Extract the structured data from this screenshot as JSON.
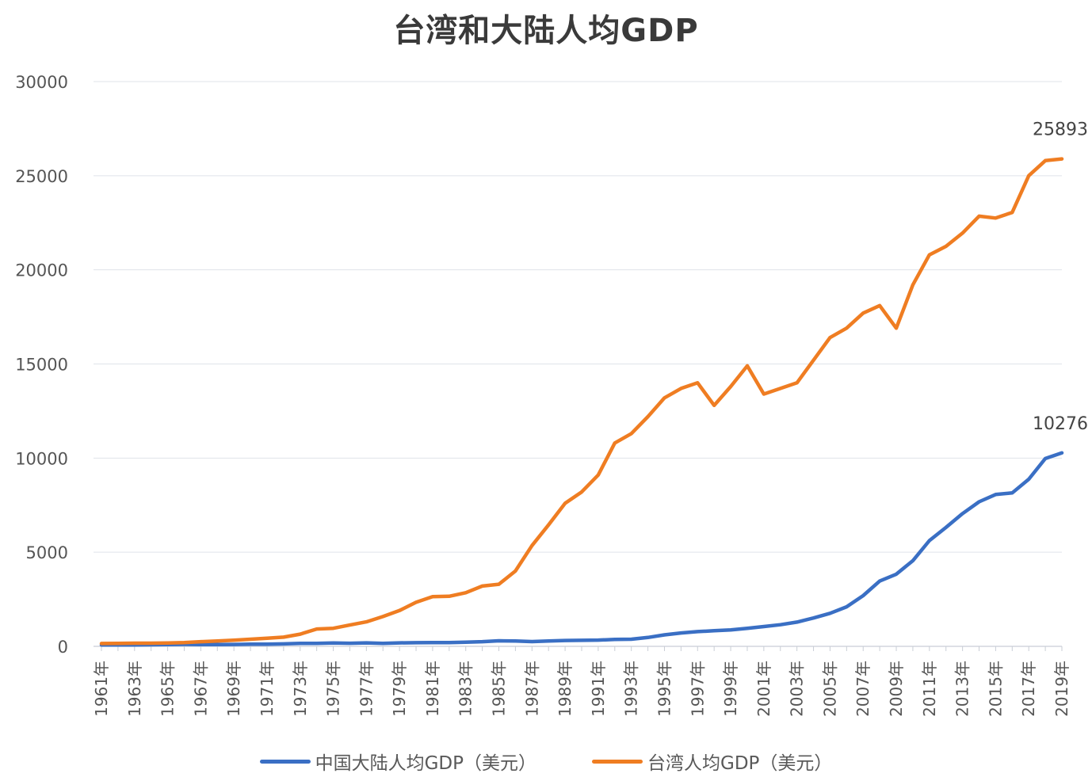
{
  "colors": {
    "series_mainland": "#3a6fc4",
    "series_taiwan": "#ef7d22",
    "grid": "#dfe3ea"
  },
  "chart_data": {
    "type": "line",
    "title": "台湾和大陆人均GDP",
    "xlabel": "",
    "ylabel": "",
    "ylim": [
      0,
      30000
    ],
    "yticks": [
      0,
      5000,
      10000,
      15000,
      20000,
      25000,
      30000
    ],
    "grid": true,
    "legend_position": "bottom",
    "x_tick_labels": [
      "1961年",
      "1963年",
      "1965年",
      "1967年",
      "1969年",
      "1971年",
      "1973年",
      "1975年",
      "1977年",
      "1979年",
      "1981年",
      "1983年",
      "1985年",
      "1987年",
      "1989年",
      "1991年",
      "1993年",
      "1995年",
      "1997年",
      "1999年",
      "2001年",
      "2003年",
      "2005年",
      "2007年",
      "2009年",
      "2011年",
      "2013年",
      "2015年",
      "2017年",
      "2019年"
    ],
    "x": [
      1961,
      1962,
      1963,
      1964,
      1965,
      1966,
      1967,
      1968,
      1969,
      1970,
      1971,
      1972,
      1973,
      1974,
      1975,
      1976,
      1977,
      1978,
      1979,
      1980,
      1981,
      1982,
      1983,
      1984,
      1985,
      1986,
      1987,
      1988,
      1989,
      1990,
      1991,
      1992,
      1993,
      1994,
      1995,
      1996,
      1997,
      1998,
      1999,
      2000,
      2001,
      2002,
      2003,
      2004,
      2005,
      2006,
      2007,
      2008,
      2009,
      2010,
      2011,
      2012,
      2013,
      2014,
      2015,
      2016,
      2017,
      2018,
      2019
    ],
    "series": [
      {
        "name": "中国大陆人均GDP（美元）",
        "values": [
          76,
          70,
          72,
          85,
          98,
          104,
          97,
          91,
          100,
          113,
          119,
          132,
          157,
          160,
          178,
          165,
          185,
          156,
          184,
          195,
          197,
          203,
          225,
          250,
          294,
          282,
          251,
          283,
          310,
          318,
          333,
          366,
          377,
          473,
          610,
          709,
          782,
          829,
          873,
          959,
          1053,
          1148,
          1288,
          1508,
          1753,
          2099,
          2693,
          3468,
          3832,
          4550,
          5618,
          6316,
          7051,
          7679,
          8067,
          8148,
          8879,
          9977,
          10276
        ]
      },
      {
        "name": "台湾人均GDP（美元）",
        "values": [
          150,
          160,
          170,
          170,
          180,
          200,
          250,
          280,
          330,
          380,
          430,
          490,
          650,
          920,
          960,
          1130,
          1300,
          1580,
          1900,
          2340,
          2640,
          2660,
          2850,
          3200,
          3300,
          4000,
          5350,
          6450,
          7600,
          8200,
          9100,
          10800,
          11300,
          12200,
          13200,
          13700,
          14000,
          12800,
          13800,
          14900,
          13400,
          13700,
          14000,
          15200,
          16400,
          16900,
          17700,
          18100,
          16900,
          19200,
          20800,
          21250,
          21950,
          22850,
          22750,
          23050,
          25000,
          25800,
          25893
        ]
      }
    ],
    "data_labels": [
      {
        "series": 1,
        "x": 2019,
        "text": "25893"
      },
      {
        "series": 0,
        "x": 2019,
        "text": "10276"
      }
    ]
  }
}
